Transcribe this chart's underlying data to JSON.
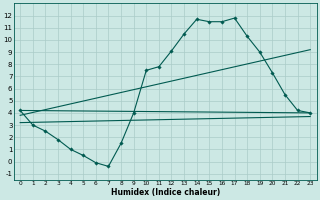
{
  "xlabel": "Humidex (Indice chaleur)",
  "background_color": "#cce8e4",
  "grid_color": "#aaccc8",
  "line_color": "#005a50",
  "xlim": [
    -0.5,
    23.5
  ],
  "ylim": [
    -1.5,
    13.0
  ],
  "xticks": [
    0,
    1,
    2,
    3,
    4,
    5,
    6,
    7,
    8,
    9,
    10,
    11,
    12,
    13,
    14,
    15,
    16,
    17,
    18,
    19,
    20,
    21,
    22,
    23
  ],
  "yticks": [
    -1,
    0,
    1,
    2,
    3,
    4,
    5,
    6,
    7,
    8,
    9,
    10,
    11,
    12
  ],
  "curve1_x": [
    0,
    1,
    2,
    3,
    4,
    5,
    6,
    7,
    8,
    9,
    10,
    11,
    12,
    13,
    14,
    15,
    16,
    17,
    18,
    19,
    20,
    21,
    22,
    23
  ],
  "curve1_y": [
    4.2,
    3.0,
    2.5,
    1.8,
    1.0,
    0.5,
    -0.1,
    -0.4,
    1.5,
    4.0,
    7.5,
    7.8,
    9.1,
    10.5,
    11.7,
    11.5,
    11.5,
    11.8,
    10.3,
    9.0,
    7.3,
    5.5,
    4.2,
    4.0
  ],
  "curve2_x": [
    0,
    23
  ],
  "curve2_y": [
    4.2,
    4.0
  ],
  "curve3_x": [
    0,
    23
  ],
  "curve3_y": [
    3.8,
    9.2
  ],
  "curve4_x": [
    0,
    23
  ],
  "curve4_y": [
    3.2,
    3.7
  ]
}
